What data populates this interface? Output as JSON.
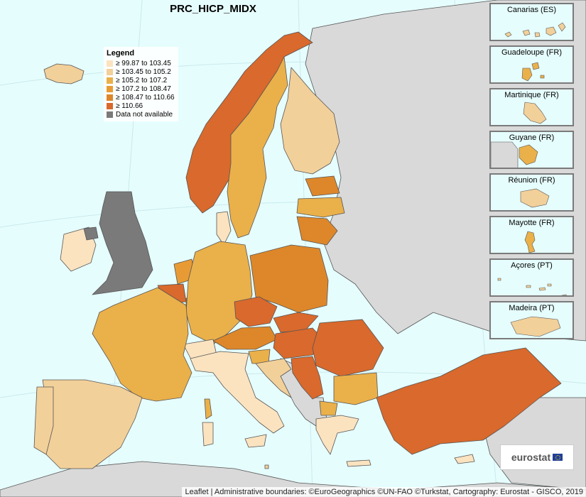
{
  "map": {
    "title": "PRC_HICP_MIDX",
    "attribution": "Leaflet | Administrative boundaries: ©EuroGeographics ©UN-FAO ©Turkstat, Cartography: Eurostat - GISCO, 2019",
    "logo_text": "eurostat",
    "colors": {
      "sea": "#e6fdfd",
      "land": "#d9d9d9",
      "border": "#555555"
    }
  },
  "legend": {
    "title": "Legend",
    "items": [
      {
        "label": "≥ 99.87 to 103.45",
        "color": "#fbe3c0"
      },
      {
        "label": "≥ 103.45 to 105.2",
        "color": "#f2d09a"
      },
      {
        "label": "≥ 105.2 to 107.2",
        "color": "#eab04a"
      },
      {
        "label": "≥ 107.2 to 108.47",
        "color": "#e89b35"
      },
      {
        "label": "≥ 108.47 to 110.66",
        "color": "#dd872a"
      },
      {
        "label": "≥ 110.66",
        "color": "#d9692c"
      },
      {
        "label": "Data not available",
        "color": "#7a7a7a"
      }
    ]
  },
  "insets": [
    {
      "label": "Canarias (ES)"
    },
    {
      "label": "Guadeloupe (FR)"
    },
    {
      "label": "Martinique (FR)"
    },
    {
      "label": "Guyane (FR)"
    },
    {
      "label": "Réunion (FR)"
    },
    {
      "label": "Mayotte (FR)"
    },
    {
      "label": "Açores (PT)"
    },
    {
      "label": "Madeira (PT)"
    }
  ]
}
